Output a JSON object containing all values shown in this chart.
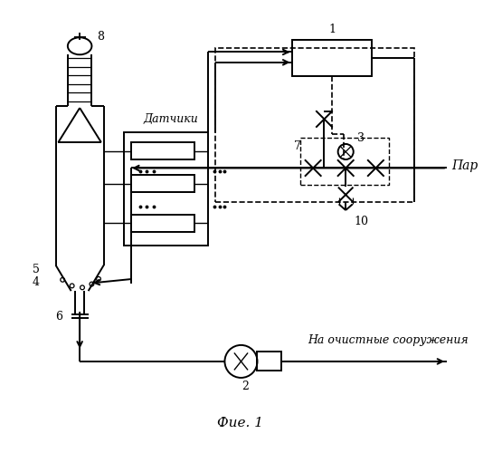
{
  "bg_color": "#ffffff",
  "line_color": "#000000",
  "title": "Фие. 1",
  "label_1": "1",
  "label_2": "2",
  "label_3": "3",
  "label_4": "4",
  "label_5": "5",
  "label_6": "6",
  "label_7": "7",
  "label_8": "8",
  "label_10": "10",
  "label_datchiki": "Датчики",
  "label_par": "Пар",
  "label_ochistnye": "На очистные сооружения",
  "figsize": [
    5.55,
    5.0
  ],
  "dpi": 100
}
